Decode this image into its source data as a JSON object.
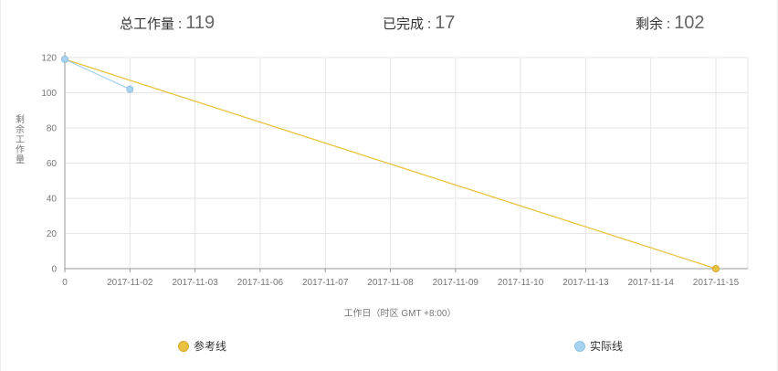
{
  "summary": {
    "total_label": "总工作量",
    "total_value": "119",
    "done_label": "已完成",
    "done_value": "17",
    "left_label": "剩余",
    "left_value": "102",
    "separator": ":"
  },
  "chart_data": {
    "type": "line",
    "categories": [
      "0",
      "2017-11-02",
      "2017-11-03",
      "2017-11-06",
      "2017-11-07",
      "2017-11-08",
      "2017-11-09",
      "2017-11-10",
      "2017-11-13",
      "2017-11-14",
      "2017-11-15"
    ],
    "ylim": [
      0,
      120
    ],
    "yticks": [
      0,
      20,
      40,
      60,
      80,
      100,
      120
    ],
    "ylabel": "剩余工作量",
    "xlabel": "工作日（时区 GMT +8:00）",
    "grid": true,
    "legend_position": "bottom",
    "series": [
      {
        "name": "参考线",
        "color": "#e9c241",
        "points": [
          {
            "category": "0",
            "value": 119
          },
          {
            "category": "2017-11-15",
            "value": 0
          }
        ]
      },
      {
        "name": "实际线",
        "color": "#a7d3f0",
        "points": [
          {
            "category": "0",
            "value": 119
          },
          {
            "category": "2017-11-02",
            "value": 102
          }
        ]
      }
    ]
  },
  "legend": {
    "reference_label": "参考线",
    "actual_label": "实际线"
  }
}
